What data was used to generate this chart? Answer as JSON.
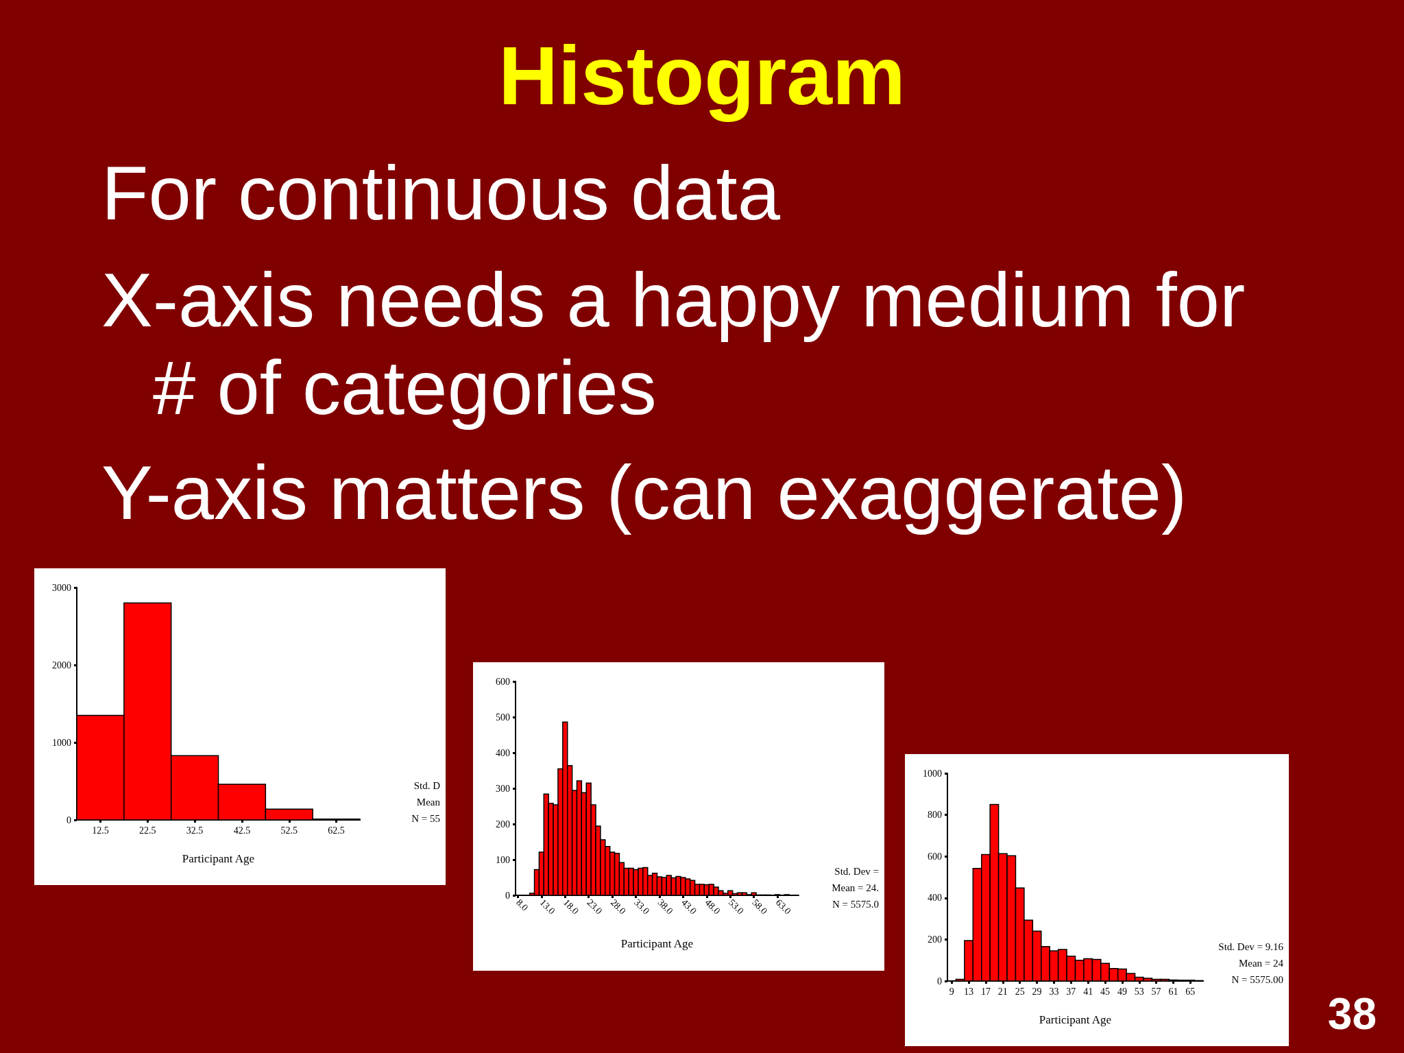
{
  "chart_data": [
    {
      "type": "other",
      "title": "Histogram",
      "annotations": [
        "For continuous data",
        "X-axis needs a happy medium for # of categories",
        "Y-axis matters (can exaggerate)",
        "38"
      ]
    },
    {
      "type": "histogram",
      "xlabel": "Participant Age",
      "color": "#ff0000",
      "bins": [
        7.5,
        17.5,
        27.5,
        37.5,
        47.5,
        57.5,
        67.5
      ],
      "values": [
        1350,
        2800,
        830,
        460,
        140,
        10
      ],
      "xlim": [
        7.5,
        67.5
      ],
      "xticks": [
        12.5,
        22.5,
        32.5,
        42.5,
        52.5,
        62.5
      ],
      "ylim": [
        0,
        3000
      ],
      "yticks": [
        0,
        1000,
        2000,
        3000
      ],
      "annotations": [
        "Std. D",
        "Mean",
        "N = 55"
      ]
    },
    {
      "type": "histogram",
      "xlabel": "Participant Age",
      "color": "#ff0000",
      "bins": [
        10.5,
        11.5,
        12.5,
        13.5,
        14.5,
        15.5,
        16.5,
        17.5,
        18.5,
        19.5,
        20.5,
        21.5,
        22.5,
        23.5,
        24.5,
        25.5,
        26.5,
        27.5,
        28.5,
        29.5,
        30.5,
        31.5,
        32.5,
        33.5,
        34.5,
        35.5,
        36.5,
        37.5,
        38.5,
        39.5,
        40.5,
        41.5,
        42.5,
        43.5,
        44.5,
        45.5,
        46.5,
        47.5,
        48.5,
        49.5,
        50.5,
        51.5,
        52.5,
        53.5,
        54.5,
        55.5,
        56.5,
        57.5,
        58.5,
        59.5,
        60.5,
        61.5,
        62.5,
        63.5,
        64.5,
        65.5
      ],
      "values": [
        6,
        72,
        121,
        284,
        258,
        254,
        355,
        486,
        364,
        294,
        321,
        288,
        315,
        254,
        194,
        156,
        137,
        121,
        118,
        92,
        76,
        76,
        72,
        76,
        78,
        56,
        62,
        52,
        50,
        56,
        49,
        53,
        50,
        46,
        42,
        31,
        31,
        30,
        31,
        23,
        13,
        6,
        13,
        5,
        7,
        7,
        2,
        7,
        1,
        1,
        1,
        0,
        2,
        0,
        2
      ],
      "xlim": [
        7.5,
        67.5
      ],
      "xticks": [
        {
          "value": 8,
          "label": "8.0"
        },
        {
          "value": 13,
          "label": "13.0"
        },
        {
          "value": 18,
          "label": "18.0"
        },
        {
          "value": 23,
          "label": "23.0"
        },
        {
          "value": 28,
          "label": "28.0"
        },
        {
          "value": 33,
          "label": "33.0"
        },
        {
          "value": 38,
          "label": "38.0"
        },
        {
          "value": 43,
          "label": "43.0"
        },
        {
          "value": 48,
          "label": "48.0"
        },
        {
          "value": 53,
          "label": "53.0"
        },
        {
          "value": 58,
          "label": "58.0"
        },
        {
          "value": 63,
          "label": "63.0"
        }
      ],
      "ylim": [
        0,
        600
      ],
      "yticks": [
        0,
        100,
        200,
        300,
        400,
        500,
        600
      ],
      "annotations": [
        "Std. Dev =",
        "Mean = 24.",
        "N = 5575.0"
      ]
    },
    {
      "type": "histogram",
      "xlabel": "Participant Age",
      "color": "#ff0000",
      "bins": [
        10,
        12,
        14,
        16,
        18,
        20,
        22,
        24,
        26,
        28,
        30,
        32,
        34,
        36,
        38,
        40,
        42,
        44,
        46,
        48,
        50,
        52,
        54,
        56,
        58,
        60,
        62,
        64,
        66,
        68
      ],
      "values": [
        8,
        195,
        542,
        609,
        850,
        613,
        603,
        448,
        293,
        240,
        166,
        145,
        152,
        120,
        100,
        107,
        104,
        85,
        60,
        58,
        36,
        18,
        13,
        8,
        8,
        5,
        4,
        4,
        2
      ],
      "xlim": [
        8,
        68
      ],
      "xticks": [
        9,
        13,
        17,
        21,
        25,
        29,
        33,
        37,
        41,
        45,
        49,
        53,
        57,
        61,
        65
      ],
      "ylim": [
        0,
        1000
      ],
      "yticks": [
        0,
        200,
        400,
        600,
        800,
        1000
      ],
      "annotations": [
        "Std. Dev = 9.16",
        "Mean = 24",
        "N = 5575.00"
      ]
    }
  ]
}
